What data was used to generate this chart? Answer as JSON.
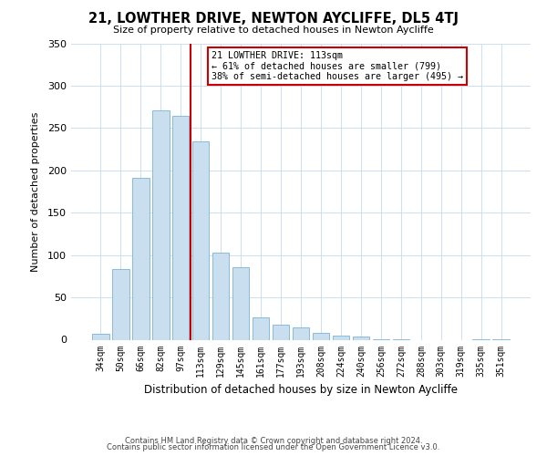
{
  "title": "21, LOWTHER DRIVE, NEWTON AYCLIFFE, DL5 4TJ",
  "subtitle": "Size of property relative to detached houses in Newton Aycliffe",
  "xlabel": "Distribution of detached houses by size in Newton Aycliffe",
  "ylabel": "Number of detached properties",
  "footer_lines": [
    "Contains HM Land Registry data © Crown copyright and database right 2024.",
    "Contains public sector information licensed under the Open Government Licence v3.0."
  ],
  "bar_labels": [
    "34sqm",
    "50sqm",
    "66sqm",
    "82sqm",
    "97sqm",
    "113sqm",
    "129sqm",
    "145sqm",
    "161sqm",
    "177sqm",
    "193sqm",
    "208sqm",
    "224sqm",
    "240sqm",
    "256sqm",
    "272sqm",
    "288sqm",
    "303sqm",
    "319sqm",
    "335sqm",
    "351sqm"
  ],
  "bar_values": [
    7,
    84,
    191,
    271,
    264,
    234,
    103,
    86,
    26,
    18,
    15,
    8,
    5,
    4,
    1,
    1,
    0,
    0,
    0,
    1,
    1
  ],
  "bar_color": "#c9dff0",
  "bar_edge_color": "#7ab3d4",
  "vline_x_index": 5,
  "vline_color": "#cc0000",
  "annotation_title": "21 LOWTHER DRIVE: 113sqm",
  "annotation_line1": "← 61% of detached houses are smaller (799)",
  "annotation_line2": "38% of semi-detached houses are larger (495) →",
  "annotation_box_color": "#ffffff",
  "annotation_box_edge": "#cc0000",
  "ylim": [
    0,
    350
  ],
  "yticks": [
    0,
    50,
    100,
    150,
    200,
    250,
    300,
    350
  ],
  "background_color": "#ffffff",
  "grid_color": "#ccdff0"
}
